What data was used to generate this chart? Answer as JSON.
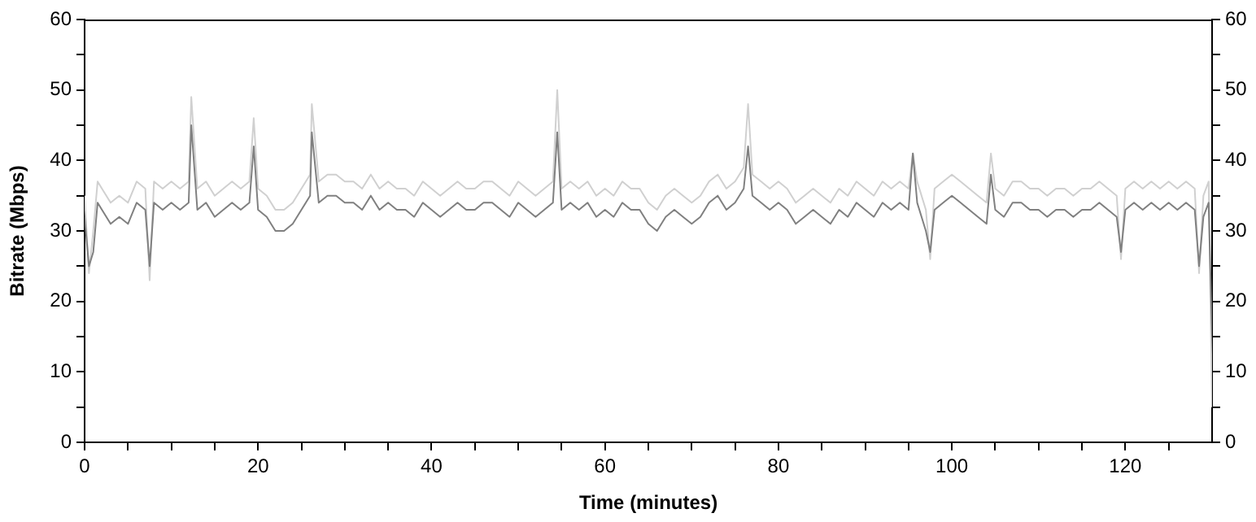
{
  "chart_data": {
    "type": "line",
    "xlabel": "Time (minutes)",
    "ylabel": "Bitrate (Mbps)",
    "x": [
      0,
      0.5,
      1,
      1.5,
      2,
      3,
      4,
      5,
      6,
      7,
      7.5,
      8,
      9,
      10,
      11,
      12,
      12.3,
      13,
      14,
      15,
      16,
      17,
      18,
      19,
      19.5,
      20,
      21,
      22,
      23,
      24,
      25,
      26,
      26.2,
      27,
      28,
      29,
      30,
      31,
      32,
      33,
      34,
      35,
      36,
      37,
      38,
      39,
      40,
      41,
      42,
      43,
      44,
      45,
      46,
      47,
      48,
      49,
      50,
      51,
      52,
      53,
      54,
      54.5,
      55,
      56,
      57,
      58,
      59,
      60,
      61,
      62,
      63,
      64,
      65,
      66,
      67,
      68,
      69,
      70,
      71,
      72,
      73,
      74,
      75,
      76,
      76.5,
      77,
      78,
      79,
      80,
      81,
      82,
      83,
      84,
      85,
      86,
      87,
      88,
      89,
      90,
      91,
      92,
      93,
      94,
      95,
      95.5,
      96,
      97,
      97.5,
      98,
      99,
      100,
      101,
      102,
      103,
      104,
      104.5,
      105,
      106,
      107,
      108,
      109,
      110,
      111,
      112,
      113,
      114,
      115,
      116,
      117,
      118,
      119,
      119.5,
      120,
      121,
      122,
      123,
      124,
      125,
      126,
      127,
      128,
      128.5,
      129,
      129.6,
      130
    ],
    "series": [
      {
        "color": "#808080",
        "values": [
          32,
          25,
          27,
          34,
          33,
          31,
          32,
          31,
          34,
          33,
          25,
          34,
          33,
          34,
          33,
          34,
          45,
          33,
          34,
          32,
          33,
          34,
          33,
          34,
          42,
          33,
          32,
          30,
          30,
          31,
          33,
          35,
          44,
          34,
          35,
          35,
          34,
          34,
          33,
          35,
          33,
          34,
          33,
          33,
          32,
          34,
          33,
          32,
          33,
          34,
          33,
          33,
          34,
          34,
          33,
          32,
          34,
          33,
          32,
          33,
          34,
          44,
          33,
          34,
          33,
          34,
          32,
          33,
          32,
          34,
          33,
          33,
          31,
          30,
          32,
          33,
          32,
          31,
          32,
          34,
          35,
          33,
          34,
          36,
          42,
          35,
          34,
          33,
          34,
          33,
          31,
          32,
          33,
          32,
          31,
          33,
          32,
          34,
          33,
          32,
          34,
          33,
          34,
          33,
          41,
          34,
          30,
          27,
          33,
          34,
          35,
          34,
          33,
          32,
          31,
          38,
          33,
          32,
          34,
          34,
          33,
          33,
          32,
          33,
          33,
          32,
          33,
          33,
          34,
          33,
          32,
          27,
          33,
          34,
          33,
          34,
          33,
          34,
          33,
          34,
          33,
          25,
          32,
          34,
          15
        ]
      },
      {
        "color": "#d0d0d0",
        "values": [
          35,
          24,
          30,
          37,
          36,
          34,
          35,
          34,
          37,
          36,
          23,
          37,
          36,
          37,
          36,
          37,
          49,
          36,
          37,
          35,
          36,
          37,
          36,
          37,
          46,
          36,
          35,
          33,
          33,
          34,
          36,
          38,
          48,
          37,
          38,
          38,
          37,
          37,
          36,
          38,
          36,
          37,
          36,
          36,
          35,
          37,
          36,
          35,
          36,
          37,
          36,
          36,
          37,
          37,
          36,
          35,
          37,
          36,
          35,
          36,
          37,
          50,
          36,
          37,
          36,
          37,
          35,
          36,
          35,
          37,
          36,
          36,
          34,
          33,
          35,
          36,
          35,
          34,
          35,
          37,
          38,
          36,
          37,
          39,
          48,
          38,
          37,
          36,
          37,
          36,
          34,
          35,
          36,
          35,
          34,
          36,
          35,
          37,
          36,
          35,
          37,
          36,
          37,
          36,
          41,
          37,
          33,
          26,
          36,
          37,
          38,
          37,
          36,
          35,
          34,
          41,
          36,
          35,
          37,
          37,
          36,
          36,
          35,
          36,
          36,
          35,
          36,
          36,
          37,
          36,
          35,
          26,
          36,
          37,
          36,
          37,
          36,
          37,
          36,
          37,
          36,
          24,
          35,
          37,
          5
        ]
      }
    ],
    "xlim": [
      0,
      130
    ],
    "xticks": [
      0,
      {
        "value": 5,
        "label": null
      },
      {
        "value": 10,
        "label": null
      },
      {
        "value": 15,
        "label": null
      },
      20,
      {
        "value": 25,
        "label": null
      },
      {
        "value": 30,
        "label": null
      },
      {
        "value": 35,
        "label": null
      },
      40,
      {
        "value": 45,
        "label": null
      },
      {
        "value": 50,
        "label": null
      },
      {
        "value": 55,
        "label": null
      },
      60,
      {
        "value": 65,
        "label": null
      },
      {
        "value": 70,
        "label": null
      },
      {
        "value": 75,
        "label": null
      },
      80,
      {
        "value": 85,
        "label": null
      },
      {
        "value": 90,
        "label": null
      },
      {
        "value": 95,
        "label": null
      },
      100,
      {
        "value": 105,
        "label": null
      },
      {
        "value": 110,
        "label": null
      },
      {
        "value": 115,
        "label": null
      },
      120,
      {
        "value": 125,
        "label": null
      }
    ],
    "ylim": [
      0,
      60
    ],
    "yticks": [
      0,
      {
        "value": 5,
        "label": null
      },
      10,
      {
        "value": 15,
        "label": null
      },
      20,
      {
        "value": 25,
        "label": null
      },
      30,
      {
        "value": 35,
        "label": null
      },
      40,
      {
        "value": 45,
        "label": null
      },
      50,
      {
        "value": 55,
        "label": null
      },
      60
    ],
    "y2lim": [
      0,
      60
    ],
    "y2ticks": [
      0,
      {
        "value": 5,
        "label": null
      },
      10,
      {
        "value": 15,
        "label": null
      },
      20,
      {
        "value": 25,
        "label": null
      },
      30,
      {
        "value": 35,
        "label": null
      },
      40,
      {
        "value": 45,
        "label": null
      },
      50,
      {
        "value": 55,
        "label": null
      },
      60
    ],
    "grid": false,
    "legend": false,
    "marker": "none",
    "line_style": "solid"
  }
}
